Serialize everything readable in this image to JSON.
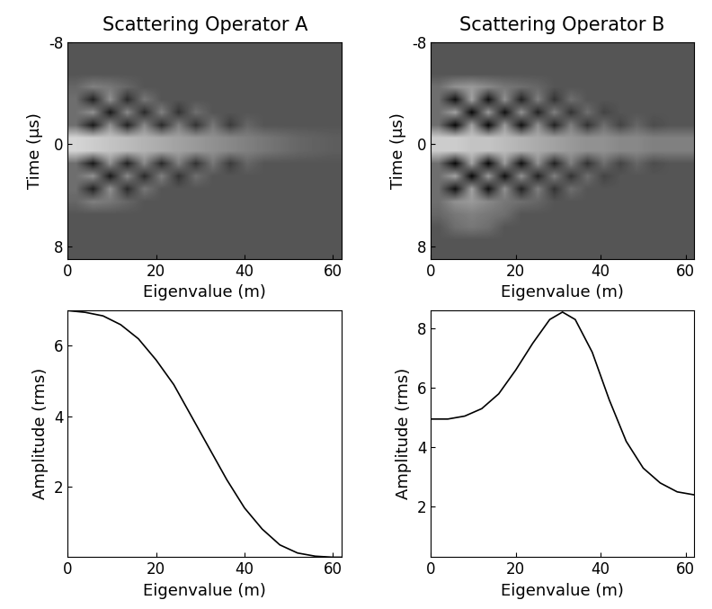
{
  "chart_data": [
    {
      "type": "heatmap",
      "title": "Scattering Operator A",
      "x_label": "Eigenvalue (m)",
      "y_label": "Time (μs)",
      "xlim": [
        0,
        62
      ],
      "xticks": [
        0,
        20,
        40,
        60
      ],
      "ylim": [
        9,
        -8
      ],
      "yticks": [
        -8,
        0,
        8
      ],
      "color": "gray",
      "color_range": [
        -1,
        2
      ],
      "cells": [
        [
          0,
          0,
          0,
          0,
          0,
          0,
          0,
          0,
          0,
          0,
          0,
          0,
          0,
          0,
          0,
          0
        ],
        [
          0,
          0,
          0,
          0,
          0,
          0,
          0,
          0,
          0,
          0,
          0,
          0,
          0,
          0,
          0,
          0
        ],
        [
          0,
          0,
          0,
          0,
          0,
          0,
          0,
          0,
          0,
          0,
          0,
          0,
          0,
          0,
          0,
          0
        ],
        [
          0.2,
          0.5,
          0.4,
          0.2,
          0,
          0,
          0,
          0,
          0,
          0,
          0,
          0,
          0,
          0,
          0,
          0
        ],
        [
          0.3,
          -0.6,
          0.7,
          -0.5,
          0.4,
          0,
          0,
          0,
          0,
          0,
          0,
          0,
          0,
          0,
          0,
          0
        ],
        [
          0.3,
          0.7,
          -0.7,
          0.6,
          -0.5,
          0.5,
          -0.4,
          0.3,
          0,
          0,
          0,
          0,
          0,
          0,
          0,
          0
        ],
        [
          0.3,
          -0.7,
          0.7,
          -0.6,
          0.6,
          -0.5,
          0.5,
          -0.4,
          0.4,
          -0.3,
          0.2,
          0,
          0,
          0,
          0,
          0
        ],
        [
          1.5,
          1.4,
          1.3,
          1.2,
          1.1,
          1.0,
          0.9,
          0.8,
          0.7,
          0.6,
          0.5,
          0.4,
          0.3,
          0.2,
          0.15,
          0.1
        ],
        [
          1.5,
          1.4,
          1.3,
          1.2,
          1.1,
          1.0,
          0.9,
          0.8,
          0.7,
          0.6,
          0.5,
          0.4,
          0.3,
          0.2,
          0.15,
          0.1
        ],
        [
          0.3,
          -0.7,
          0.7,
          -0.6,
          0.6,
          -0.5,
          0.5,
          -0.4,
          0.4,
          -0.3,
          0.2,
          0,
          0,
          0,
          0,
          0
        ],
        [
          0.3,
          0.7,
          -0.7,
          0.6,
          -0.5,
          0.5,
          -0.4,
          0.3,
          0,
          0,
          0,
          0,
          0,
          0,
          0,
          0
        ],
        [
          0.3,
          -0.6,
          0.7,
          -0.5,
          0.4,
          0,
          0,
          0,
          0,
          0,
          0,
          0,
          0,
          0,
          0,
          0
        ],
        [
          0.2,
          0.5,
          0.4,
          0.2,
          0,
          0,
          0,
          0,
          0,
          0,
          0,
          0,
          0,
          0,
          0,
          0
        ],
        [
          0,
          0,
          0,
          0,
          0,
          0,
          0,
          0,
          0,
          0,
          0,
          0,
          0,
          0,
          0,
          0
        ],
        [
          0,
          0,
          0,
          0,
          0,
          0,
          0,
          0,
          0,
          0,
          0,
          0,
          0,
          0,
          0,
          0
        ],
        [
          0,
          0,
          0,
          0,
          0,
          0,
          0,
          0,
          0,
          0,
          0,
          0,
          0,
          0,
          0,
          0
        ],
        [
          0,
          0,
          0,
          0,
          0,
          0,
          0,
          0,
          0,
          0,
          0,
          0,
          0,
          0,
          0,
          0
        ]
      ]
    },
    {
      "type": "heatmap",
      "title": "Scattering Operator B",
      "x_label": "Eigenvalue (m)",
      "y_label": "Time (μs)",
      "xlim": [
        0,
        62
      ],
      "xticks": [
        0,
        20,
        40,
        60
      ],
      "ylim": [
        9,
        -8
      ],
      "yticks": [
        -8,
        0,
        8
      ],
      "color": "gray",
      "color_range": [
        -1,
        2
      ],
      "cells": [
        [
          0,
          0,
          0,
          0,
          0,
          0,
          0,
          0,
          0,
          0,
          0,
          0,
          0,
          0,
          0,
          0
        ],
        [
          0,
          0,
          0,
          0,
          0,
          0,
          0,
          0,
          0,
          0,
          0,
          0,
          0,
          0,
          0,
          0
        ],
        [
          0,
          0,
          0,
          0,
          0,
          0,
          0,
          0,
          0,
          0,
          0,
          0,
          0,
          0,
          0,
          0
        ],
        [
          0.3,
          0.7,
          0.8,
          0.6,
          0.4,
          0.3,
          0.2,
          0,
          0,
          0,
          0,
          0,
          0,
          0,
          0,
          0
        ],
        [
          0.3,
          -0.8,
          0.9,
          -0.8,
          0.7,
          -0.6,
          0.5,
          -0.4,
          0.3,
          0,
          0,
          0,
          0,
          0,
          0,
          0
        ],
        [
          0.3,
          0.9,
          -0.9,
          0.8,
          -0.8,
          0.7,
          -0.6,
          0.5,
          -0.4,
          0.3,
          -0.2,
          0,
          0,
          0,
          0,
          0
        ],
        [
          0.3,
          -0.9,
          0.9,
          -0.9,
          0.8,
          -0.8,
          0.7,
          -0.6,
          0.5,
          -0.4,
          0.3,
          -0.2,
          0.2,
          -0.1,
          0,
          0
        ],
        [
          1.4,
          1.4,
          1.3,
          1.3,
          1.2,
          1.1,
          1.0,
          0.9,
          0.8,
          0.7,
          0.7,
          0.6,
          0.6,
          0.5,
          0.5,
          0.5
        ],
        [
          1.4,
          1.4,
          1.3,
          1.3,
          1.2,
          1.1,
          1.0,
          0.9,
          0.8,
          0.7,
          0.7,
          0.6,
          0.6,
          0.5,
          0.5,
          0.5
        ],
        [
          0.3,
          -0.9,
          0.9,
          -0.9,
          0.8,
          -0.8,
          0.7,
          -0.6,
          0.5,
          -0.4,
          0.3,
          -0.2,
          0.2,
          -0.1,
          0,
          0
        ],
        [
          0.3,
          0.9,
          -0.9,
          0.8,
          -0.8,
          0.7,
          -0.6,
          0.5,
          -0.4,
          0.3,
          -0.2,
          0,
          0,
          0,
          0,
          0
        ],
        [
          0.3,
          -0.8,
          0.9,
          -0.8,
          0.7,
          -0.6,
          0.5,
          -0.4,
          0.3,
          0,
          0,
          0,
          0,
          0,
          0,
          0
        ],
        [
          0.3,
          0.7,
          0.8,
          0.6,
          0.4,
          0.3,
          0.2,
          0,
          0,
          0,
          0,
          0,
          0,
          0,
          0,
          0
        ],
        [
          0.2,
          0.4,
          0.5,
          0.4,
          0.3,
          0,
          0,
          0,
          0,
          0,
          0,
          0,
          0,
          0,
          0,
          0
        ],
        [
          0,
          0.3,
          0.4,
          0.3,
          0,
          0,
          0,
          0,
          0,
          0,
          0,
          0,
          0,
          0,
          0,
          0
        ],
        [
          0,
          0,
          0,
          0,
          0,
          0,
          0,
          0,
          0,
          0,
          0,
          0,
          0,
          0,
          0,
          0
        ],
        [
          0,
          0,
          0,
          0,
          0,
          0,
          0,
          0,
          0,
          0,
          0,
          0,
          0,
          0,
          0,
          0
        ]
      ]
    },
    {
      "type": "line",
      "x_label": "Eigenvalue (m)",
      "y_label": "Amplitude (rms)",
      "xlim": [
        0,
        62
      ],
      "xticks": [
        0,
        20,
        40,
        60
      ],
      "ylim": [
        0,
        7
      ],
      "yticks": [
        2,
        4,
        6
      ],
      "color": "#000000",
      "x": [
        0,
        4,
        8,
        12,
        16,
        20,
        24,
        28,
        32,
        36,
        40,
        44,
        48,
        52,
        56,
        60,
        62
      ],
      "values": [
        7.0,
        6.95,
        6.85,
        6.6,
        6.2,
        5.6,
        4.9,
        4.0,
        3.1,
        2.2,
        1.4,
        0.8,
        0.35,
        0.12,
        0.03,
        0.0,
        0.0
      ]
    },
    {
      "type": "line",
      "x_label": "Eigenvalue (m)",
      "y_label": "Amplitude (rms)",
      "xlim": [
        0,
        62
      ],
      "xticks": [
        0,
        20,
        40,
        60
      ],
      "ylim": [
        0.3,
        8.6
      ],
      "yticks": [
        2,
        4,
        6,
        8
      ],
      "color": "#000000",
      "x": [
        0,
        4,
        8,
        12,
        16,
        20,
        24,
        28,
        31,
        34,
        38,
        42,
        46,
        50,
        54,
        58,
        62
      ],
      "values": [
        4.95,
        4.95,
        5.05,
        5.3,
        5.8,
        6.6,
        7.5,
        8.3,
        8.55,
        8.3,
        7.2,
        5.6,
        4.2,
        3.3,
        2.8,
        2.5,
        2.4
      ]
    }
  ]
}
